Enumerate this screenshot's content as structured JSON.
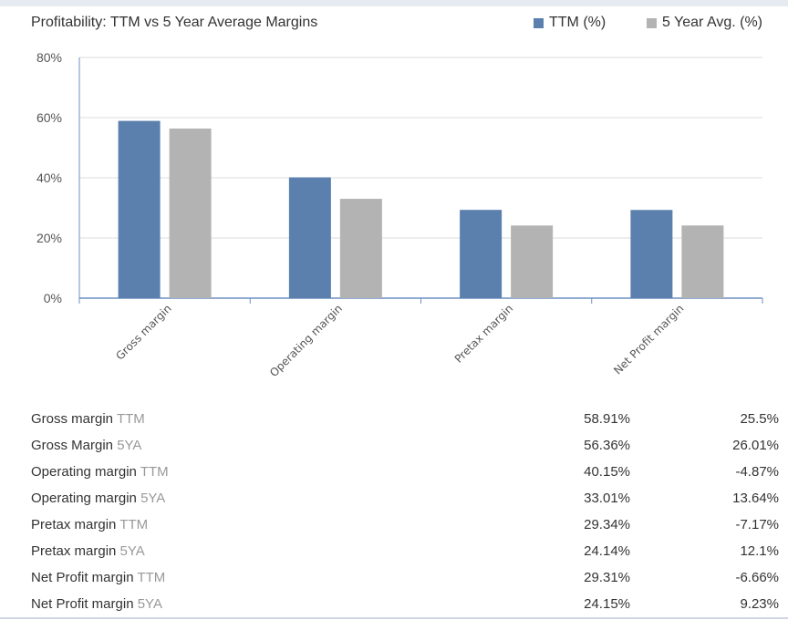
{
  "chart_data": {
    "type": "bar",
    "title": "Profitability: TTM vs 5 Year Average Margins",
    "categories": [
      "Gross margin",
      "Operating margin",
      "Pretax margin",
      "Net Profit margin"
    ],
    "series": [
      {
        "name": "TTM (%)",
        "values": [
          58.91,
          40.15,
          29.34,
          29.31
        ],
        "color": "#5b80ad"
      },
      {
        "name": "5 Year Avg. (%)",
        "values": [
          56.36,
          33.01,
          24.14,
          24.15
        ],
        "color": "#b3b3b3"
      }
    ],
    "yticks": [
      "0%",
      "20%",
      "40%",
      "60%",
      "80%"
    ],
    "ylim": [
      0,
      80
    ],
    "grid": true,
    "legend_position": "top-right"
  },
  "table": {
    "rows": [
      {
        "label": "Gross margin",
        "period": "TTM",
        "value1": "58.91%",
        "value2": "25.5%"
      },
      {
        "label": "Gross Margin",
        "period": "5YA",
        "value1": "56.36%",
        "value2": "26.01%"
      },
      {
        "label": "Operating margin",
        "period": "TTM",
        "value1": "40.15%",
        "value2": "-4.87%"
      },
      {
        "label": "Operating margin",
        "period": "5YA",
        "value1": "33.01%",
        "value2": "13.64%"
      },
      {
        "label": "Pretax margin",
        "period": "TTM",
        "value1": "29.34%",
        "value2": "-7.17%"
      },
      {
        "label": "Pretax margin",
        "period": "5YA",
        "value1": "24.14%",
        "value2": "12.1%"
      },
      {
        "label": "Net Profit margin",
        "period": "TTM",
        "value1": "29.31%",
        "value2": "-6.66%"
      },
      {
        "label": "Net Profit margin",
        "period": "5YA",
        "value1": "24.15%",
        "value2": "9.23%"
      }
    ]
  }
}
